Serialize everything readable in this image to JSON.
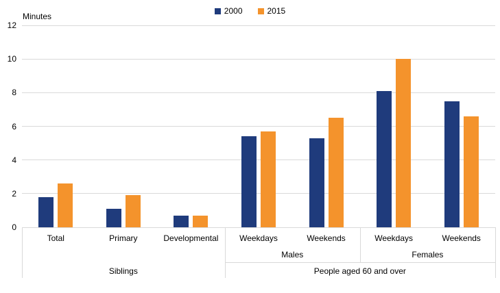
{
  "chart_data": {
    "type": "bar",
    "title": "",
    "ylabel": "Minutes",
    "xlabel": "",
    "ylim": [
      0,
      12
    ],
    "yticks": [
      0,
      2,
      4,
      6,
      8,
      10,
      12
    ],
    "grid": "horizontal",
    "legend_position": "top-center",
    "series": [
      {
        "name": "2000",
        "color": "#1f3b7c"
      },
      {
        "name": "2015",
        "color": "#f4932c"
      }
    ],
    "groups": [
      {
        "label": "Siblings",
        "subgroups": [
          {
            "label": "",
            "categories": [
              {
                "name": "Total",
                "values": [
                  1.8,
                  2.6
                ]
              },
              {
                "name": "Primary",
                "values": [
                  1.1,
                  1.9
                ]
              },
              {
                "name": "Developmental",
                "values": [
                  0.7,
                  0.7
                ]
              }
            ]
          }
        ]
      },
      {
        "label": "People aged 60 and over",
        "subgroups": [
          {
            "label": "Males",
            "categories": [
              {
                "name": "Weekdays",
                "values": [
                  5.4,
                  5.7
                ]
              },
              {
                "name": "Weekends",
                "values": [
                  5.3,
                  6.5
                ]
              }
            ]
          },
          {
            "label": "Females",
            "categories": [
              {
                "name": "Weekdays",
                "values": [
                  8.1,
                  10.0
                ]
              },
              {
                "name": "Weekends",
                "values": [
                  7.5,
                  6.6
                ]
              }
            ]
          }
        ]
      }
    ],
    "colors": {
      "gridline": "#d9d9d9",
      "text": "#000000",
      "background": "#ffffff"
    }
  }
}
